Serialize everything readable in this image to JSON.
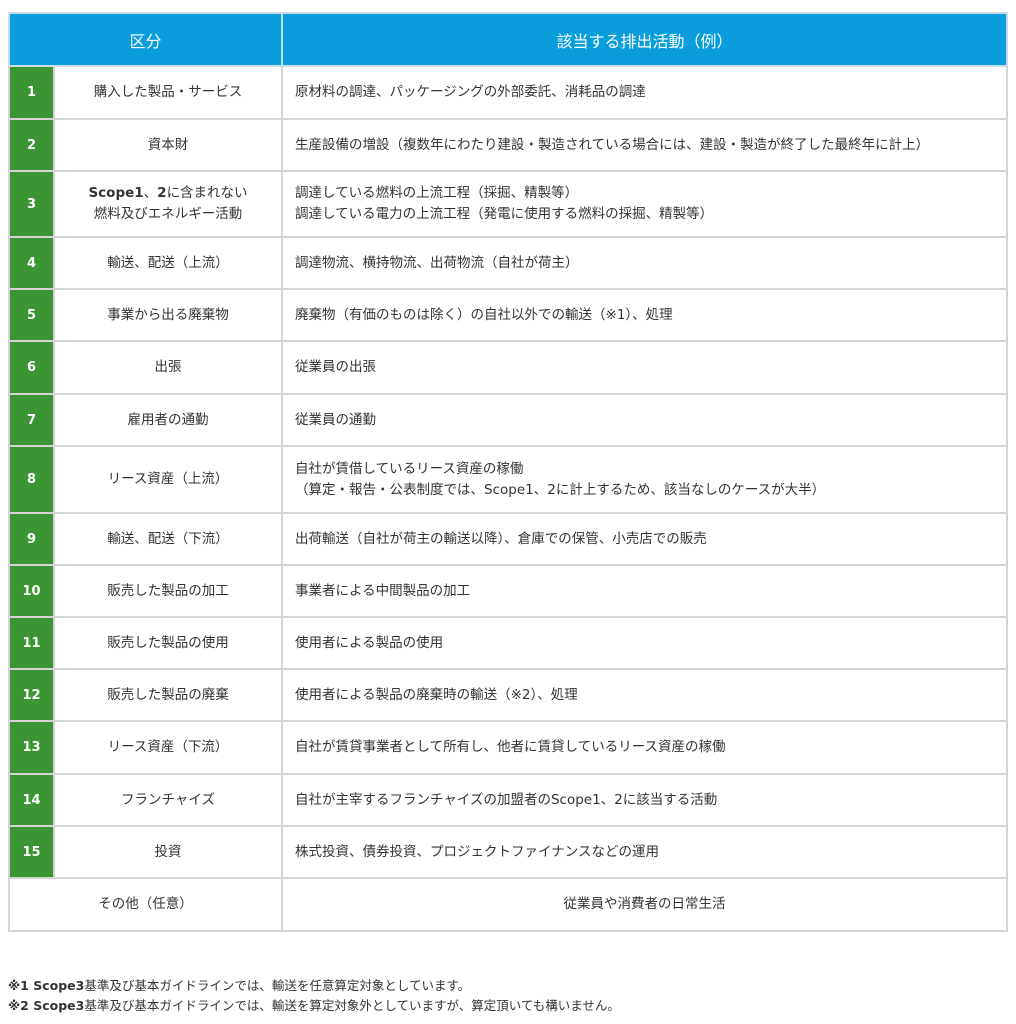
{
  "header": {
    "category": "区分",
    "activity": "該当する排出活動（例）"
  },
  "rows": [
    {
      "num": "1",
      "category": "購入した製品・サービス",
      "activity": [
        "原材料の調達、パッケージングの外部委託、消耗品の調達"
      ]
    },
    {
      "num": "2",
      "category": "資本財",
      "activity": [
        "生産設備の増設（複数年にわたり建設・製造されている場合には、建設・製造が終了した最終年に計上）"
      ]
    },
    {
      "num": "3",
      "category_bold1": "Scope1",
      "category_mid": "、",
      "category_bold2": "2",
      "category_rest": "に含まれない",
      "category_line2": "燃料及びエネルギー活動",
      "activity": [
        "調達している燃料の上流工程（採掘、精製等）",
        "調達している電力の上流工程（発電に使用する燃料の採掘、精製等）"
      ]
    },
    {
      "num": "4",
      "category": "輸送、配送（上流）",
      "activity": [
        "調達物流、横持物流、出荷物流（自社が荷主）"
      ]
    },
    {
      "num": "5",
      "category": "事業から出る廃棄物",
      "activity": [
        "廃棄物（有価のものは除く）の自社以外での輸送（※1）、処理"
      ]
    },
    {
      "num": "6",
      "category": "出張",
      "activity": [
        "従業員の出張"
      ]
    },
    {
      "num": "7",
      "category": "雇用者の通勤",
      "activity": [
        "従業員の通勤"
      ]
    },
    {
      "num": "8",
      "category": "リース資産（上流）",
      "activity": [
        "自社が賃借しているリース資産の稼働",
        "（算定・報告・公表制度では、Scope1、2に計上するため、該当なしのケースが大半）"
      ]
    },
    {
      "num": "9",
      "category": "輸送、配送（下流）",
      "activity": [
        "出荷輸送（自社が荷主の輸送以降）、倉庫での保管、小売店での販売"
      ]
    },
    {
      "num": "10",
      "category": "販売した製品の加工",
      "activity": [
        "事業者による中間製品の加工"
      ]
    },
    {
      "num": "11",
      "category": "販売した製品の使用",
      "activity": [
        "使用者による製品の使用"
      ]
    },
    {
      "num": "12",
      "category": "販売した製品の廃棄",
      "activity": [
        "使用者による製品の廃棄時の輸送（※2）、処理"
      ]
    },
    {
      "num": "13",
      "category": "リース資産（下流）",
      "activity": [
        "自社が賃貸事業者として所有し、他者に賃貸しているリース資産の稼働"
      ]
    },
    {
      "num": "14",
      "category": "フランチャイズ",
      "activity": [
        "自社が主宰するフランチャイズの加盟者のScope1、2に該当する活動"
      ]
    },
    {
      "num": "15",
      "category": "投資",
      "activity": [
        "株式投資、債券投資、プロジェクトファイナンスなどの運用"
      ]
    }
  ],
  "other": {
    "category": "その他（任意）",
    "activity": "従業員や消費者の日常生活"
  },
  "notes": [
    {
      "mark": "※1 Scope3",
      "text": "基準及び基本ガイドラインでは、輸送を任意算定対象としています。"
    },
    {
      "mark": "※2 Scope3",
      "text": "基準及び基本ガイドラインでは、輸送を算定対象外としていますが、算定頂いても構いません。"
    }
  ],
  "colors": {
    "header": "#0a9ddc",
    "number": "#3b9533",
    "border": "#d4d4d4"
  }
}
